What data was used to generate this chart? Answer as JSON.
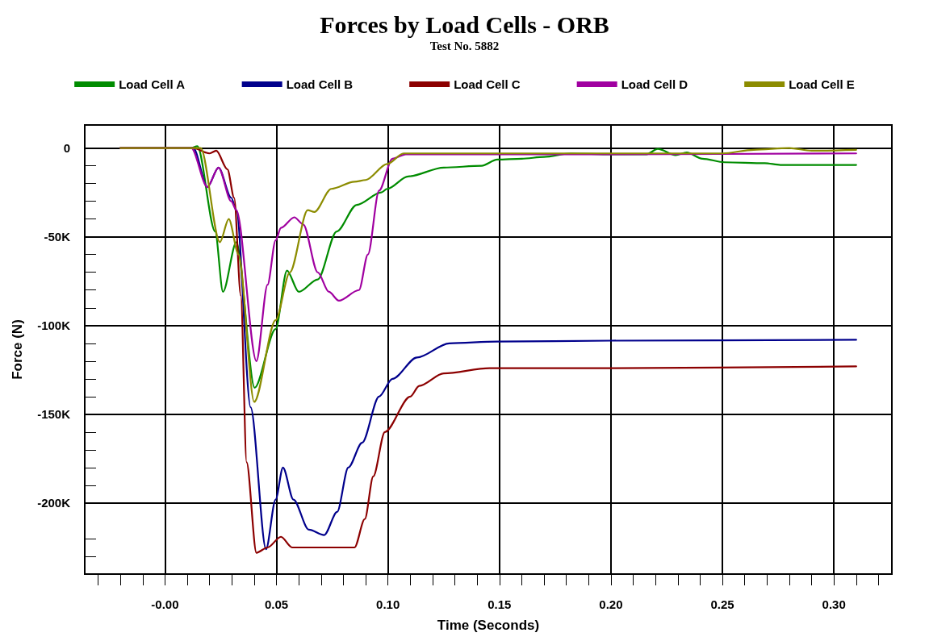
{
  "chart_data": {
    "type": "line",
    "title": "Forces by Load Cells - ORB",
    "subtitle": "Test No. 5882",
    "xlabel": "Time (Seconds)",
    "ylabel": "Force (N)",
    "xlim": [
      -0.036,
      0.326
    ],
    "ylim": [
      -240000,
      13000
    ],
    "xticks": [
      {
        "value": -0.03,
        "label": null
      },
      {
        "value": -0.02,
        "label": null
      },
      {
        "value": -0.01,
        "label": null
      },
      {
        "value": 0,
        "label": "-0.00"
      },
      {
        "value": 0.01,
        "label": null
      },
      {
        "value": 0.02,
        "label": null
      },
      {
        "value": 0.03,
        "label": null
      },
      {
        "value": 0.04,
        "label": null
      },
      0.05,
      {
        "value": 0.06,
        "label": null
      },
      {
        "value": 0.07,
        "label": null
      },
      {
        "value": 0.08,
        "label": null
      },
      {
        "value": 0.09,
        "label": null
      },
      {
        "value": 0.1,
        "label": "0.10"
      },
      {
        "value": 0.11,
        "label": null
      },
      {
        "value": 0.12,
        "label": null
      },
      {
        "value": 0.13,
        "label": null
      },
      {
        "value": 0.14,
        "label": null
      },
      0.15,
      {
        "value": 0.16,
        "label": null
      },
      {
        "value": 0.17,
        "label": null
      },
      {
        "value": 0.18,
        "label": null
      },
      {
        "value": 0.19,
        "label": null
      },
      {
        "value": 0.2,
        "label": "0.20"
      },
      {
        "value": 0.21,
        "label": null
      },
      {
        "value": 0.22,
        "label": null
      },
      {
        "value": 0.23,
        "label": null
      },
      {
        "value": 0.24,
        "label": null
      },
      0.25,
      {
        "value": 0.26,
        "label": null
      },
      {
        "value": 0.27,
        "label": null
      },
      {
        "value": 0.28,
        "label": null
      },
      {
        "value": 0.29,
        "label": null
      },
      {
        "value": 0.3,
        "label": "0.30"
      },
      {
        "value": 0.31,
        "label": null
      },
      {
        "value": 0.32,
        "label": null
      }
    ],
    "yticks": [
      {
        "value": -230000,
        "label": null
      },
      {
        "value": -220000,
        "label": null
      },
      {
        "value": -200000,
        "label": "-200K"
      },
      {
        "value": -190000,
        "label": null
      },
      {
        "value": -180000,
        "label": null
      },
      {
        "value": -170000,
        "label": null
      },
      {
        "value": -160000,
        "label": null
      },
      {
        "value": -150000,
        "label": "-150K"
      },
      {
        "value": -140000,
        "label": null
      },
      {
        "value": -130000,
        "label": null
      },
      {
        "value": -120000,
        "label": null
      },
      {
        "value": -110000,
        "label": null
      },
      {
        "value": -100000,
        "label": "-100K"
      },
      {
        "value": -90000,
        "label": null
      },
      {
        "value": -80000,
        "label": null
      },
      {
        "value": -70000,
        "label": null
      },
      {
        "value": -60000,
        "label": null
      },
      {
        "value": -50000,
        "label": "-50K"
      },
      {
        "value": -40000,
        "label": null
      },
      {
        "value": -30000,
        "label": null
      },
      {
        "value": -20000,
        "label": null
      },
      {
        "value": -10000,
        "label": null
      },
      0
    ],
    "grid": true,
    "legend": "top",
    "marker": "none",
    "line_style": "solid",
    "series": [
      {
        "name": "Load Cell A",
        "color": "#008c00",
        "x": [
          -0.02,
          0.0116,
          0.0145,
          0.0225,
          0.026,
          0.032,
          0.0402,
          0.0496,
          0.0547,
          0.06,
          0.0685,
          0.077,
          0.086,
          0.097,
          0.0996,
          0.109,
          0.125,
          0.142,
          0.149,
          0.16,
          0.17,
          0.182,
          0.2,
          0.216,
          0.221,
          0.229,
          0.234,
          0.241,
          0.251,
          0.269,
          0.276,
          0.31
        ],
        "values": [
          0,
          0,
          1000,
          -47000,
          -81000,
          -53000,
          -135000,
          -102000,
          -69000,
          -81000,
          -74000,
          -47000,
          -32000,
          -25000,
          -23000,
          -16000,
          -11000,
          -10000,
          -6500,
          -6000,
          -5000,
          -3000,
          -3500,
          -3500,
          -500,
          -4000,
          -2500,
          -6000,
          -8000,
          -8500,
          -9500,
          -9500
        ]
      },
      {
        "name": "Load Cell B",
        "color": "#00008c",
        "x": [
          -0.02,
          0.0127,
          0.019,
          0.024,
          0.0297,
          0.032,
          0.0384,
          0.0453,
          0.0496,
          0.0529,
          0.0576,
          0.0645,
          0.0714,
          0.0772,
          0.0822,
          0.0884,
          0.096,
          0.102,
          0.113,
          0.1275,
          0.149,
          0.2,
          0.31
        ],
        "values": [
          0,
          0,
          -22000,
          -11000,
          -28000,
          -35000,
          -146000,
          -226000,
          -198000,
          -180000,
          -198000,
          -215000,
          -218000,
          -205000,
          -180000,
          -166000,
          -140000,
          -130000,
          -118000,
          -110000,
          -109000,
          -108500,
          -108000
        ]
      },
      {
        "name": "Load Cell C",
        "color": "#8c0000",
        "x": [
          -0.02,
          0.0127,
          0.02,
          0.023,
          0.028,
          0.031,
          0.034,
          0.0366,
          0.041,
          0.046,
          0.052,
          0.057,
          0.085,
          0.0896,
          0.0934,
          0.0986,
          0.11,
          0.114,
          0.125,
          0.1455,
          0.2,
          0.31
        ],
        "values": [
          0,
          0,
          -3000,
          -1500,
          -12000,
          -28000,
          -83000,
          -177000,
          -228000,
          -225000,
          -219000,
          -225000,
          -225000,
          -209000,
          -185000,
          -160000,
          -140000,
          -134000,
          -127000,
          -124000,
          -124000,
          -123000
        ]
      },
      {
        "name": "Load Cell D",
        "color": "#a000a0",
        "x": [
          -0.02,
          0.0118,
          0.019,
          0.024,
          0.0297,
          0.032,
          0.041,
          0.046,
          0.0496,
          0.052,
          0.058,
          0.062,
          0.0685,
          0.0735,
          0.078,
          0.087,
          0.091,
          0.096,
          0.102,
          0.108,
          0.2,
          0.31
        ],
        "values": [
          0,
          0,
          -22000,
          -11000,
          -30000,
          -35000,
          -120000,
          -77000,
          -52000,
          -45000,
          -39000,
          -43000,
          -70000,
          -81000,
          -86000,
          -80000,
          -60000,
          -24000,
          -6000,
          -3500,
          -3500,
          -3000
        ]
      },
      {
        "name": "Load Cell E",
        "color": "#8c8c00",
        "x": [
          -0.02,
          0.016,
          0.0246,
          0.0286,
          0.033,
          0.04,
          0.0496,
          0.056,
          0.064,
          0.067,
          0.0746,
          0.085,
          0.09,
          0.0996,
          0.107,
          0.2,
          0.25,
          0.264,
          0.28,
          0.29,
          0.31
        ],
        "values": [
          0,
          0,
          -53000,
          -40000,
          -60000,
          -143000,
          -97000,
          -70000,
          -35000,
          -36000,
          -23000,
          -19000,
          -18000,
          -9000,
          -3000,
          -3000,
          -3000,
          -1000,
          0,
          -1500,
          -1000
        ]
      }
    ]
  }
}
